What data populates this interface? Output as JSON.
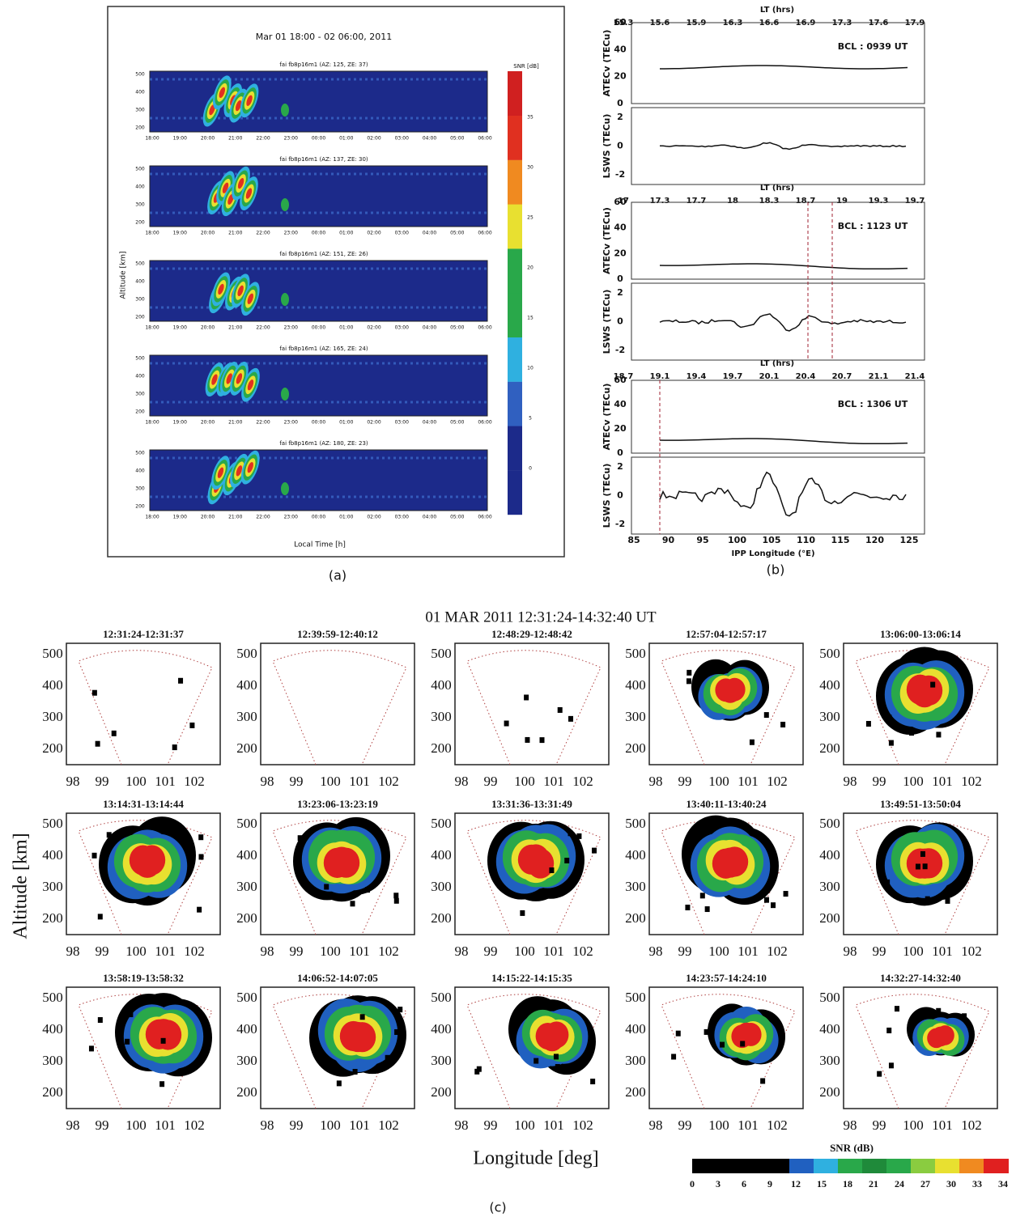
{
  "panel_a": {
    "title": "Mar 01 18:00 - 02 06:00, 2011",
    "subplot_labels": [
      "fai fb8p16m1 (AZ: 125, ZE: 37)",
      "fai fb8p16m1 (AZ: 137, ZE: 30)",
      "fai fb8p16m1 (AZ: 151, ZE: 26)",
      "fai fb8p16m1 (AZ: 165, ZE: 24)",
      "fai fb8p16m1 (AZ: 180, ZE: 23)"
    ],
    "ylabel": "Altitude [km]",
    "xlabel": "Local Time [h]",
    "yticks": [
      "500",
      "400",
      "300",
      "200"
    ],
    "xticks": [
      "18:00",
      "19:00",
      "20:00",
      "21:00",
      "22:00",
      "23:00",
      "00:00",
      "01:00",
      "02:00",
      "03:00",
      "04:00",
      "05:00",
      "06:00"
    ],
    "colorbar_label": "SNR [dB]",
    "colorbar_ticks": [
      "35",
      "30",
      "25",
      "20",
      "15",
      "10",
      "5",
      "0"
    ],
    "caption": "(a)"
  },
  "panel_b": {
    "top_axis_label": "LT (hrs)",
    "blocks": [
      {
        "lt_ticks": [
          "15.3",
          "15.6",
          "15.9",
          "16.3",
          "16.6",
          "16.9",
          "17.3",
          "17.6",
          "17.9"
        ],
        "bcl": "BCL : 0939 UT"
      },
      {
        "lt_ticks": [
          "17",
          "17.3",
          "17.7",
          "18",
          "18.3",
          "18.7",
          "19",
          "19.3",
          "19.7"
        ],
        "bcl": "BCL : 1123 UT"
      },
      {
        "lt_ticks": [
          "18.7",
          "19.1",
          "19.4",
          "19.7",
          "20.1",
          "20.4",
          "20.7",
          "21.1",
          "21.4"
        ],
        "bcl": "BCL : 1306 UT"
      }
    ],
    "atec_label": "ATECv (TECu)",
    "atec_ticks": [
      "60",
      "40",
      "20",
      "0"
    ],
    "lsws_label": "LSWS (TECu)",
    "lsws_ticks": [
      "2",
      "0",
      "-2"
    ],
    "xticks": [
      "85",
      "90",
      "95",
      "100",
      "105",
      "110",
      "115",
      "120",
      "125"
    ],
    "xlabel": "IPP Longitude (°E)",
    "caption": "(b)"
  },
  "panel_c": {
    "title": "01 MAR 2011    12:31:24-14:32:40 UT",
    "subplot_titles": [
      "12:31:24-12:31:37",
      "12:39:59-12:40:12",
      "12:48:29-12:48:42",
      "12:57:04-12:57:17",
      "13:06:00-13:06:14",
      "13:14:31-13:14:44",
      "13:23:06-13:23:19",
      "13:31:36-13:31:49",
      "13:40:11-13:40:24",
      "13:49:51-13:50:04",
      "13:58:19-13:58:32",
      "14:06:52-14:07:05",
      "14:15:22-14:15:35",
      "14:23:57-14:24:10",
      "14:32:27-14:32:40"
    ],
    "yticks": [
      "500",
      "400",
      "300",
      "200"
    ],
    "xticks": [
      "98",
      "99",
      "100",
      "101",
      "102"
    ],
    "ylabel": "Altitude [km]",
    "xlabel": "Longitude [deg]",
    "colorbar_label": "SNR (dB)",
    "colorbar_ticks": [
      "0",
      "3",
      "6",
      "9",
      "12",
      "15",
      "18",
      "21",
      "24",
      "27",
      "30",
      "33",
      "34"
    ],
    "caption": "(c)"
  }
}
